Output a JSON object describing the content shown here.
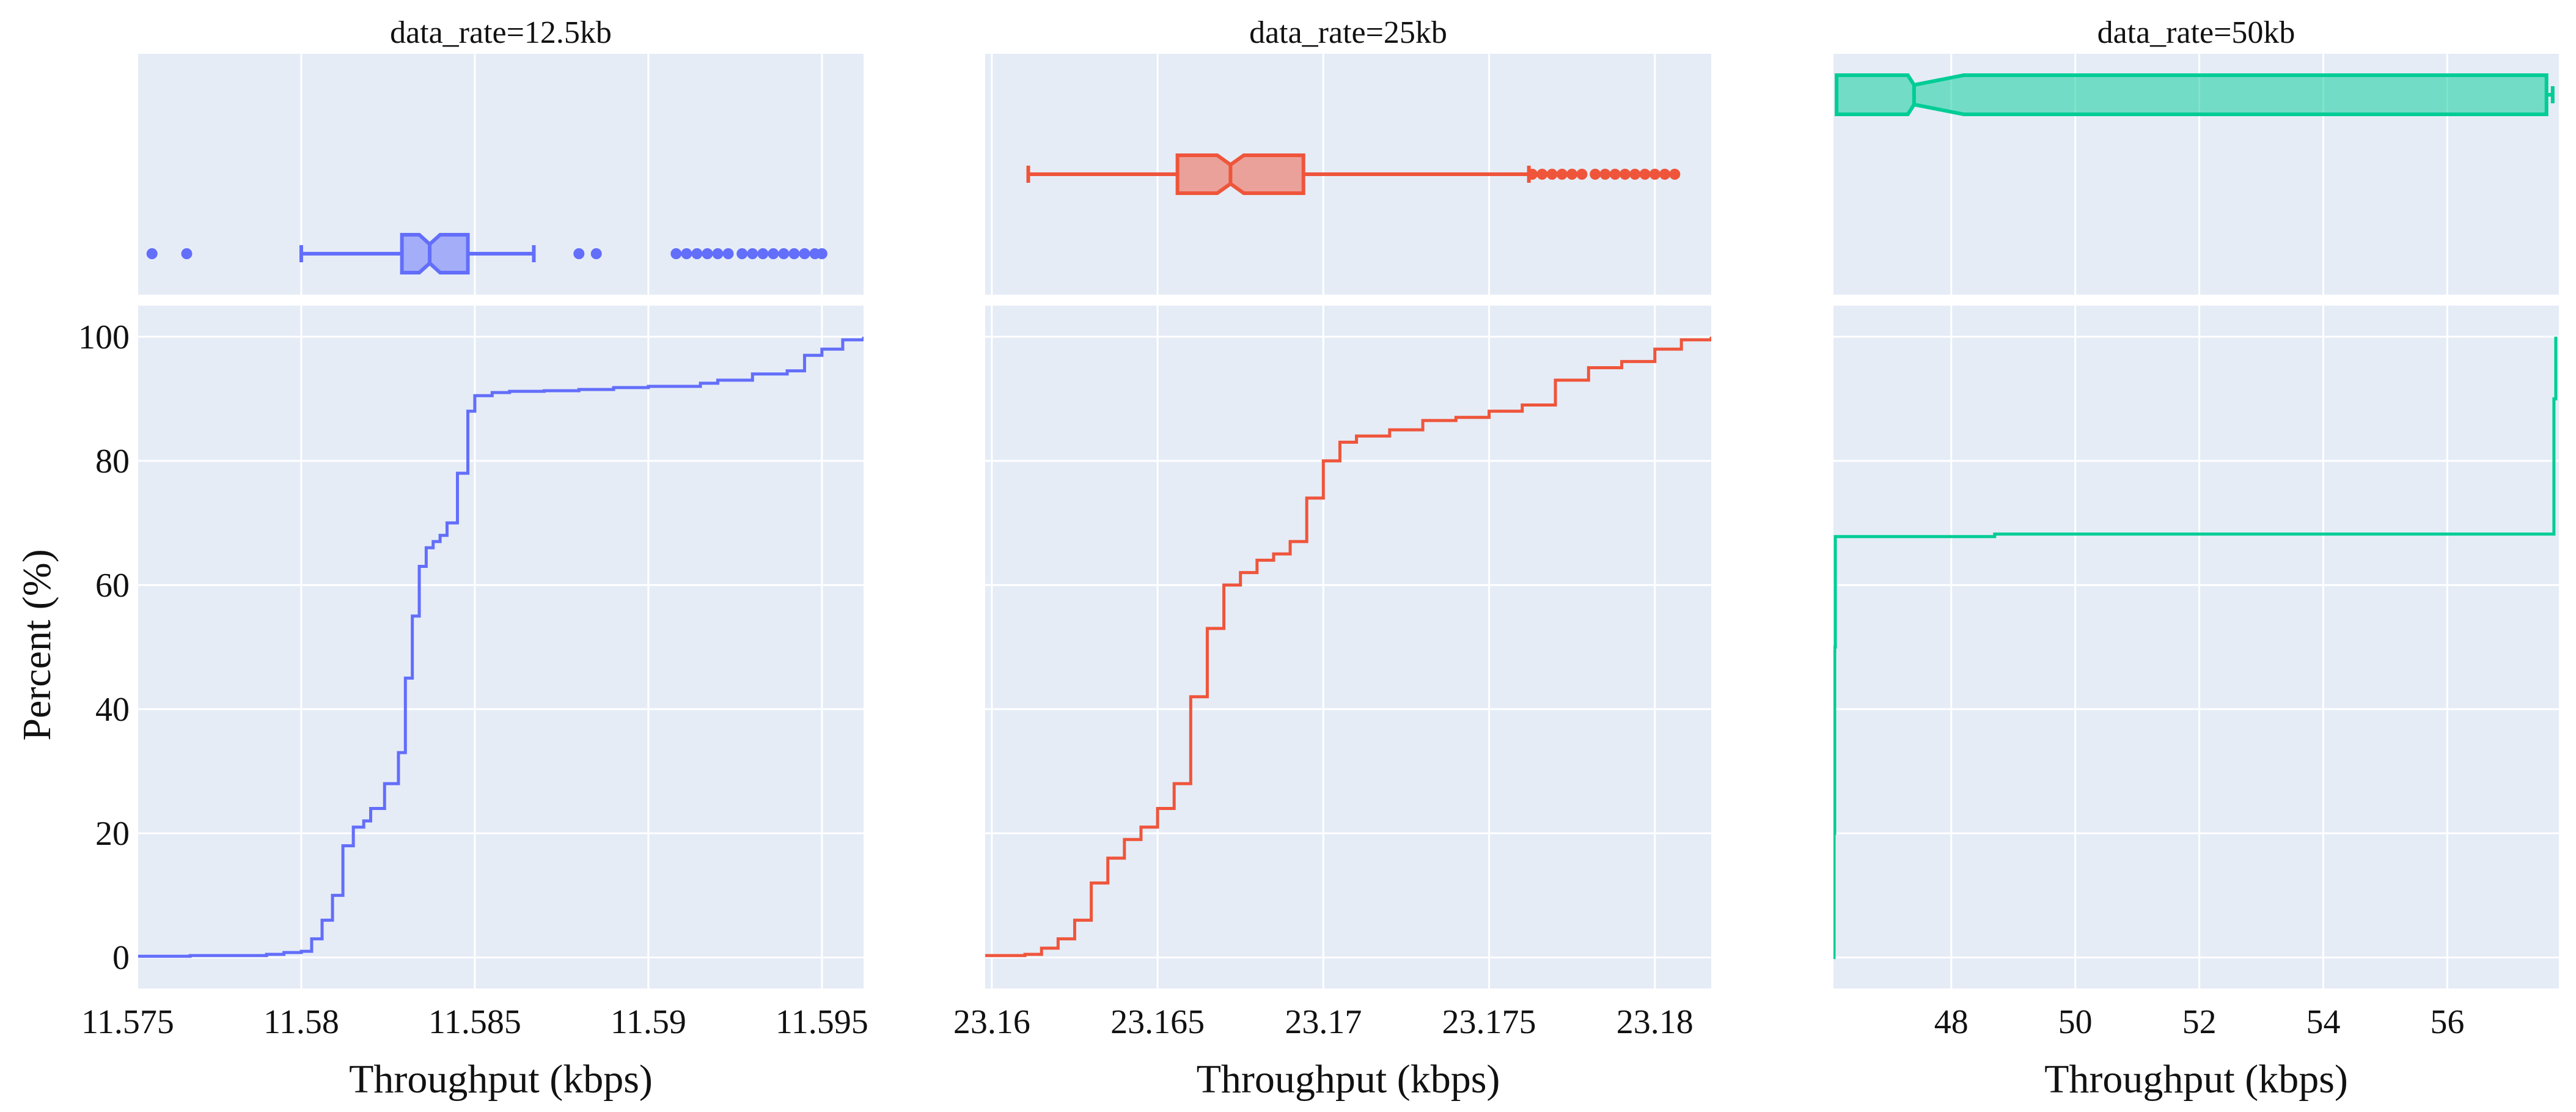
{
  "chart_data": {
    "type": "ecdf_with_marginal_boxplot",
    "ylabel": "Percent (%)",
    "ylim": [
      -5,
      105
    ],
    "yticks": [
      0,
      20,
      40,
      60,
      80,
      100
    ],
    "panels": [
      {
        "title": "data_rate=12.5kb",
        "xlabel": "Throughput (kbps)",
        "color": "#636efa",
        "xlim": [
          11.5753,
          11.5962
        ],
        "xticks": [
          11.575,
          11.58,
          11.585,
          11.59,
          11.595
        ],
        "xtick_labels": [
          "11.575",
          "11.58",
          "11.585",
          "11.59",
          "11.595"
        ],
        "ecdf": {
          "x": [
            11.5753,
            11.576,
            11.5768,
            11.577,
            11.5788,
            11.579,
            11.5795,
            11.58,
            11.5803,
            11.5806,
            11.5809,
            11.5812,
            11.5815,
            11.5818,
            11.582,
            11.5824,
            11.5828,
            11.583,
            11.5832,
            11.5834,
            11.5836,
            11.5838,
            11.584,
            11.5842,
            11.5845,
            11.5848,
            11.585,
            11.5855,
            11.586,
            11.587,
            11.588,
            11.589,
            11.59,
            11.591,
            11.5915,
            11.592,
            11.593,
            11.594,
            11.5945,
            11.595,
            11.5956,
            11.5962
          ],
          "y": [
            0.2,
            0.2,
            0.3,
            0.3,
            0.3,
            0.5,
            0.8,
            1,
            3,
            6,
            10,
            18,
            21,
            22,
            24,
            28,
            33,
            45,
            55,
            63,
            66,
            67,
            68,
            70,
            78,
            88,
            90.5,
            91,
            91.2,
            91.3,
            91.5,
            91.8,
            92,
            92,
            92.5,
            93,
            94,
            94.5,
            97,
            98,
            99.5,
            100
          ]
        },
        "box": {
          "min": 11.58,
          "q1": 11.5829,
          "median": 11.5837,
          "q3": 11.5848,
          "max": 11.5867,
          "notch_low": 11.5834,
          "notch_high": 11.584,
          "outliers": [
            11.5757,
            11.5767,
            11.588,
            11.5885,
            11.5908,
            11.5911,
            11.5914,
            11.5917,
            11.592,
            11.5923,
            11.5927,
            11.593,
            11.5933,
            11.5936,
            11.5939,
            11.5942,
            11.5945,
            11.5948,
            11.595
          ]
        }
      },
      {
        "title": "data_rate=25kb",
        "xlabel": "Throughput (kbps)",
        "color": "#ef553b",
        "xlim": [
          23.1598,
          23.1817
        ],
        "xticks": [
          23.16,
          23.165,
          23.17,
          23.175,
          23.18
        ],
        "xtick_labels": [
          "23.16",
          "23.165",
          "23.17",
          "23.175",
          "23.18"
        ],
        "ecdf": {
          "x": [
            23.1598,
            23.161,
            23.1615,
            23.162,
            23.1625,
            23.163,
            23.1635,
            23.164,
            23.1645,
            23.165,
            23.1655,
            23.166,
            23.1665,
            23.167,
            23.1675,
            23.168,
            23.1685,
            23.169,
            23.1695,
            23.17,
            23.1705,
            23.171,
            23.172,
            23.173,
            23.174,
            23.175,
            23.176,
            23.177,
            23.178,
            23.179,
            23.18,
            23.1808,
            23.1817
          ],
          "y": [
            0.3,
            0.5,
            1.5,
            3,
            6,
            12,
            16,
            19,
            21,
            24,
            28,
            42,
            53,
            60,
            62,
            64,
            65,
            67,
            74,
            80,
            83,
            84,
            85,
            86.5,
            87,
            88,
            89,
            93,
            95,
            96,
            98,
            99.5,
            100
          ]
        },
        "box": {
          "min": 23.1611,
          "q1": 23.1656,
          "median": 23.1672,
          "q3": 23.1694,
          "max": 23.1762,
          "notch_low": 23.1668,
          "notch_high": 23.1676,
          "outliers": [
            23.1763,
            23.1766,
            23.1769,
            23.1772,
            23.1775,
            23.1778,
            23.1782,
            23.1785,
            23.1788,
            23.1791,
            23.1794,
            23.1797,
            23.18,
            23.1803,
            23.1806
          ]
        }
      },
      {
        "title": "data_rate=50kb",
        "xlabel": "Throughput (kbps)",
        "color": "#00cc96",
        "xlim": [
          46.1,
          57.8
        ],
        "xticks": [
          48,
          50,
          52,
          54,
          56
        ],
        "xtick_labels": [
          "48",
          "50",
          "52",
          "54",
          "56"
        ],
        "ecdf": {
          "x": [
            46.1,
            46.11,
            46.12,
            46.13,
            48.0,
            48.6,
            48.7,
            52.0,
            57.7,
            57.72,
            57.75
          ],
          "y": [
            0,
            20,
            50,
            67.8,
            67.8,
            67.8,
            68.2,
            68.2,
            68.2,
            90,
            100
          ]
        },
        "box": {
          "min": 46.15,
          "q1": 46.15,
          "median": 47.4,
          "q3": 57.6,
          "max": 57.7,
          "notch_low": 47.3,
          "notch_high": 48.2,
          "outliers": []
        }
      }
    ]
  }
}
